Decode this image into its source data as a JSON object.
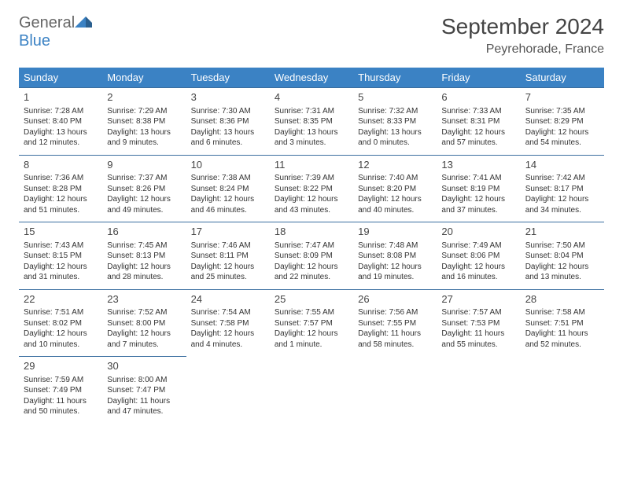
{
  "logo": {
    "text1": "General",
    "text2": "Blue"
  },
  "title": "September 2024",
  "location": "Peyrehorade, France",
  "colors": {
    "header_bg": "#3b82c4",
    "header_text": "#ffffff",
    "rule": "#3b6fa0",
    "body_text": "#333333",
    "title_text": "#444444"
  },
  "weekdays": [
    "Sunday",
    "Monday",
    "Tuesday",
    "Wednesday",
    "Thursday",
    "Friday",
    "Saturday"
  ],
  "weeks": [
    [
      {
        "n": "1",
        "sr": "Sunrise: 7:28 AM",
        "ss": "Sunset: 8:40 PM",
        "d1": "Daylight: 13 hours",
        "d2": "and 12 minutes."
      },
      {
        "n": "2",
        "sr": "Sunrise: 7:29 AM",
        "ss": "Sunset: 8:38 PM",
        "d1": "Daylight: 13 hours",
        "d2": "and 9 minutes."
      },
      {
        "n": "3",
        "sr": "Sunrise: 7:30 AM",
        "ss": "Sunset: 8:36 PM",
        "d1": "Daylight: 13 hours",
        "d2": "and 6 minutes."
      },
      {
        "n": "4",
        "sr": "Sunrise: 7:31 AM",
        "ss": "Sunset: 8:35 PM",
        "d1": "Daylight: 13 hours",
        "d2": "and 3 minutes."
      },
      {
        "n": "5",
        "sr": "Sunrise: 7:32 AM",
        "ss": "Sunset: 8:33 PM",
        "d1": "Daylight: 13 hours",
        "d2": "and 0 minutes."
      },
      {
        "n": "6",
        "sr": "Sunrise: 7:33 AM",
        "ss": "Sunset: 8:31 PM",
        "d1": "Daylight: 12 hours",
        "d2": "and 57 minutes."
      },
      {
        "n": "7",
        "sr": "Sunrise: 7:35 AM",
        "ss": "Sunset: 8:29 PM",
        "d1": "Daylight: 12 hours",
        "d2": "and 54 minutes."
      }
    ],
    [
      {
        "n": "8",
        "sr": "Sunrise: 7:36 AM",
        "ss": "Sunset: 8:28 PM",
        "d1": "Daylight: 12 hours",
        "d2": "and 51 minutes."
      },
      {
        "n": "9",
        "sr": "Sunrise: 7:37 AM",
        "ss": "Sunset: 8:26 PM",
        "d1": "Daylight: 12 hours",
        "d2": "and 49 minutes."
      },
      {
        "n": "10",
        "sr": "Sunrise: 7:38 AM",
        "ss": "Sunset: 8:24 PM",
        "d1": "Daylight: 12 hours",
        "d2": "and 46 minutes."
      },
      {
        "n": "11",
        "sr": "Sunrise: 7:39 AM",
        "ss": "Sunset: 8:22 PM",
        "d1": "Daylight: 12 hours",
        "d2": "and 43 minutes."
      },
      {
        "n": "12",
        "sr": "Sunrise: 7:40 AM",
        "ss": "Sunset: 8:20 PM",
        "d1": "Daylight: 12 hours",
        "d2": "and 40 minutes."
      },
      {
        "n": "13",
        "sr": "Sunrise: 7:41 AM",
        "ss": "Sunset: 8:19 PM",
        "d1": "Daylight: 12 hours",
        "d2": "and 37 minutes."
      },
      {
        "n": "14",
        "sr": "Sunrise: 7:42 AM",
        "ss": "Sunset: 8:17 PM",
        "d1": "Daylight: 12 hours",
        "d2": "and 34 minutes."
      }
    ],
    [
      {
        "n": "15",
        "sr": "Sunrise: 7:43 AM",
        "ss": "Sunset: 8:15 PM",
        "d1": "Daylight: 12 hours",
        "d2": "and 31 minutes."
      },
      {
        "n": "16",
        "sr": "Sunrise: 7:45 AM",
        "ss": "Sunset: 8:13 PM",
        "d1": "Daylight: 12 hours",
        "d2": "and 28 minutes."
      },
      {
        "n": "17",
        "sr": "Sunrise: 7:46 AM",
        "ss": "Sunset: 8:11 PM",
        "d1": "Daylight: 12 hours",
        "d2": "and 25 minutes."
      },
      {
        "n": "18",
        "sr": "Sunrise: 7:47 AM",
        "ss": "Sunset: 8:09 PM",
        "d1": "Daylight: 12 hours",
        "d2": "and 22 minutes."
      },
      {
        "n": "19",
        "sr": "Sunrise: 7:48 AM",
        "ss": "Sunset: 8:08 PM",
        "d1": "Daylight: 12 hours",
        "d2": "and 19 minutes."
      },
      {
        "n": "20",
        "sr": "Sunrise: 7:49 AM",
        "ss": "Sunset: 8:06 PM",
        "d1": "Daylight: 12 hours",
        "d2": "and 16 minutes."
      },
      {
        "n": "21",
        "sr": "Sunrise: 7:50 AM",
        "ss": "Sunset: 8:04 PM",
        "d1": "Daylight: 12 hours",
        "d2": "and 13 minutes."
      }
    ],
    [
      {
        "n": "22",
        "sr": "Sunrise: 7:51 AM",
        "ss": "Sunset: 8:02 PM",
        "d1": "Daylight: 12 hours",
        "d2": "and 10 minutes."
      },
      {
        "n": "23",
        "sr": "Sunrise: 7:52 AM",
        "ss": "Sunset: 8:00 PM",
        "d1": "Daylight: 12 hours",
        "d2": "and 7 minutes."
      },
      {
        "n": "24",
        "sr": "Sunrise: 7:54 AM",
        "ss": "Sunset: 7:58 PM",
        "d1": "Daylight: 12 hours",
        "d2": "and 4 minutes."
      },
      {
        "n": "25",
        "sr": "Sunrise: 7:55 AM",
        "ss": "Sunset: 7:57 PM",
        "d1": "Daylight: 12 hours",
        "d2": "and 1 minute."
      },
      {
        "n": "26",
        "sr": "Sunrise: 7:56 AM",
        "ss": "Sunset: 7:55 PM",
        "d1": "Daylight: 11 hours",
        "d2": "and 58 minutes."
      },
      {
        "n": "27",
        "sr": "Sunrise: 7:57 AM",
        "ss": "Sunset: 7:53 PM",
        "d1": "Daylight: 11 hours",
        "d2": "and 55 minutes."
      },
      {
        "n": "28",
        "sr": "Sunrise: 7:58 AM",
        "ss": "Sunset: 7:51 PM",
        "d1": "Daylight: 11 hours",
        "d2": "and 52 minutes."
      }
    ],
    [
      {
        "n": "29",
        "sr": "Sunrise: 7:59 AM",
        "ss": "Sunset: 7:49 PM",
        "d1": "Daylight: 11 hours",
        "d2": "and 50 minutes."
      },
      {
        "n": "30",
        "sr": "Sunrise: 8:00 AM",
        "ss": "Sunset: 7:47 PM",
        "d1": "Daylight: 11 hours",
        "d2": "and 47 minutes."
      },
      null,
      null,
      null,
      null,
      null
    ]
  ]
}
